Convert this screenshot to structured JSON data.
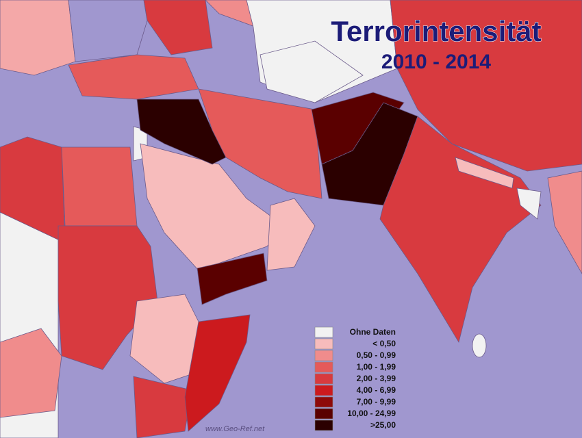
{
  "header": {
    "title": "Terrorintensität",
    "subtitle": "2010 - 2014"
  },
  "legend": {
    "items": [
      {
        "label": "Ohne Daten",
        "color": "#f2f2f2"
      },
      {
        "label": "<  0,50",
        "color": "#f7bcbc"
      },
      {
        "label": "0,50 -  0,99",
        "color": "#f08c8c"
      },
      {
        "label": "1,00 -  1,99",
        "color": "#e55a5a"
      },
      {
        "label": "2,00 -  3,99",
        "color": "#d83a3f"
      },
      {
        "label": "4,00 -  6,99",
        "color": "#cc1a1e"
      },
      {
        "label": "7,00 -  9,99",
        "color": "#8e0a0a"
      },
      {
        "label": "10,00 - 24,99",
        "color": "#5a0000"
      },
      {
        "label": ">25,00",
        "color": "#2b0000"
      }
    ]
  },
  "watermark": "www.Geo-Ref.net"
}
